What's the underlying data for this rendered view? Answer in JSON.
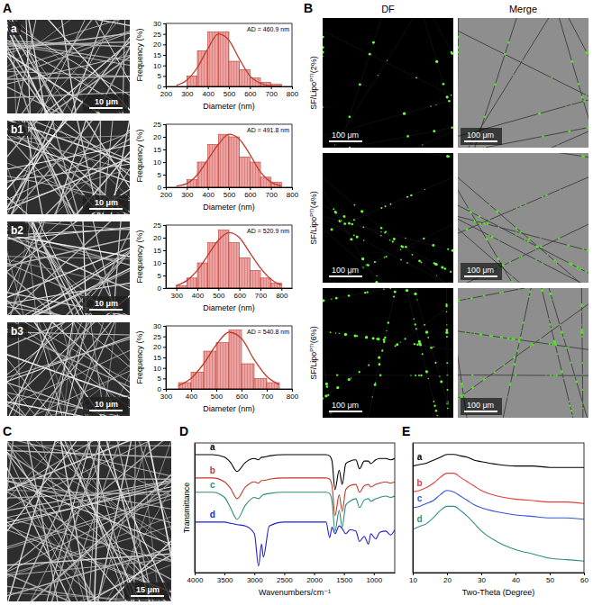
{
  "chart_data": [
    {
      "type": "histogram",
      "annotation": "AD = 460.9 nm",
      "xlabel": "Diameter (nm)",
      "ylabel": "Frequency (%)",
      "bins": [
        300,
        350,
        400,
        450,
        500,
        550,
        600,
        650,
        700,
        750
      ],
      "values": [
        5,
        17,
        26,
        26,
        12,
        8,
        4,
        2,
        1
      ],
      "color": "#eaa3a3",
      "xlim": [
        200,
        800
      ],
      "xticks": [
        200,
        300,
        400,
        500,
        600,
        700,
        800
      ],
      "ylim": [
        0,
        30
      ],
      "yticks": [
        0,
        5,
        10,
        15,
        20,
        25,
        30
      ],
      "fit": {
        "x": [
          250,
          300,
          350,
          400,
          450,
          500,
          550,
          600,
          650,
          700,
          750
        ],
        "values": [
          0.5,
          3,
          9,
          18,
          25,
          22,
          13,
          5,
          1.5,
          0.3,
          0.1
        ],
        "color": "#c0392b"
      }
    },
    {
      "type": "histogram",
      "annotation": "AD = 491.8 nm",
      "xlabel": "Diameter (nm)",
      "ylabel": "Frequency (%)",
      "bins": [
        300,
        350,
        400,
        450,
        500,
        550,
        600,
        650,
        700,
        750
      ],
      "values": [
        3,
        10,
        17,
        21,
        20,
        12,
        10,
        4,
        2
      ],
      "color": "#eaa3a3",
      "xlim": [
        200,
        800
      ],
      "xticks": [
        200,
        300,
        400,
        500,
        600,
        700,
        800
      ],
      "ylim": [
        0,
        25
      ],
      "yticks": [
        0,
        5,
        10,
        15,
        20,
        25
      ],
      "fit": {
        "x": [
          250,
          300,
          350,
          400,
          450,
          500,
          550,
          600,
          650,
          700,
          750
        ],
        "values": [
          0.5,
          1.5,
          5,
          11,
          17,
          21,
          19,
          13,
          6,
          2,
          0.6
        ],
        "color": "#c0392b"
      }
    },
    {
      "type": "histogram",
      "annotation": "AD = 520.9 nm",
      "xlabel": "Diameter (nm)",
      "ylabel": "Frequency (%)",
      "bins": [
        300,
        350,
        400,
        450,
        500,
        550,
        600,
        650,
        700,
        750,
        800
      ],
      "values": [
        1,
        4,
        10,
        18,
        23,
        18,
        12,
        7,
        4,
        2
      ],
      "color": "#eaa3a3",
      "xlim": [
        250,
        850
      ],
      "xticks": [
        300,
        400,
        500,
        600,
        700,
        800
      ],
      "ylim": [
        0,
        25
      ],
      "yticks": [
        0,
        5,
        10,
        15,
        20,
        25
      ],
      "fit": {
        "x": [
          300,
          350,
          400,
          450,
          500,
          550,
          600,
          650,
          700,
          750,
          800
        ],
        "values": [
          1,
          3,
          7,
          13,
          19,
          22,
          20,
          14,
          8,
          3.5,
          1.2
        ],
        "color": "#c0392b"
      }
    },
    {
      "type": "histogram",
      "annotation": "AD = 540.8 nm",
      "xlabel": "Diameter (nm)",
      "ylabel": "Frequency (%)",
      "bins": [
        350,
        400,
        450,
        500,
        550,
        600,
        650,
        700,
        750
      ],
      "values": [
        3,
        8,
        18,
        22,
        28,
        12,
        5,
        3
      ],
      "color": "#eaa3a3",
      "xlim": [
        300,
        800
      ],
      "xticks": [
        300,
        400,
        500,
        600,
        700,
        800
      ],
      "ylim": [
        0,
        30
      ],
      "yticks": [
        0,
        5,
        10,
        15,
        20,
        25,
        30
      ],
      "fit": {
        "x": [
          350,
          400,
          450,
          500,
          550,
          600,
          650,
          700,
          750
        ],
        "values": [
          1.5,
          5,
          12,
          21,
          27,
          24,
          14,
          6,
          2
        ],
        "color": "#c0392b"
      }
    },
    {
      "type": "line",
      "xlabel": "Wavenumbers/cm⁻¹",
      "ylabel": "Transmittance",
      "tick_labels": "x",
      "xlim": [
        4000,
        650
      ],
      "xticks": [
        4000,
        3500,
        3000,
        2500,
        2000,
        1500,
        1000
      ],
      "ylim": [
        0,
        100
      ],
      "x": [
        4000,
        3700,
        3500,
        3400,
        3290,
        3150,
        3000,
        2930,
        2880,
        2850,
        2750,
        2500,
        2000,
        1800,
        1740,
        1700,
        1650,
        1580,
        1530,
        1470,
        1400,
        1300,
        1240,
        1160,
        1090,
        1050,
        970,
        900,
        800,
        720,
        650
      ],
      "series": [
        {
          "name": "a",
          "color": "#000000",
          "values": [
            91,
            91,
            89,
            85,
            78,
            85,
            88,
            87,
            89,
            89,
            90,
            91,
            91,
            91,
            90,
            86,
            64,
            79,
            68,
            84,
            86,
            87,
            80,
            86,
            86,
            84,
            87,
            88,
            88,
            87,
            88
          ]
        },
        {
          "name": "b",
          "color": "#c0392b",
          "values": [
            73,
            73,
            70,
            65,
            57,
            66,
            70,
            69,
            71,
            71,
            72,
            73,
            73,
            73,
            72,
            67,
            44,
            60,
            47,
            64,
            67,
            68,
            62,
            67,
            68,
            66,
            68,
            69,
            70,
            69,
            70
          ]
        },
        {
          "name": "c",
          "color": "#2e8b7a",
          "values": [
            62,
            62,
            58,
            50,
            41,
            52,
            58,
            57,
            59,
            60,
            61,
            62,
            62,
            62,
            61,
            55,
            32,
            48,
            35,
            52,
            55,
            57,
            50,
            56,
            57,
            55,
            57,
            58,
            59,
            58,
            59
          ]
        },
        {
          "name": "d",
          "color": "#1f1fd0",
          "values": [
            39,
            39,
            39,
            38,
            37,
            36,
            30,
            5,
            22,
            12,
            36,
            39,
            39,
            39,
            27,
            35,
            30,
            36,
            34,
            30,
            33,
            32,
            24,
            28,
            22,
            30,
            26,
            31,
            32,
            29,
            33
          ]
        }
      ]
    },
    {
      "type": "line",
      "xlabel": "Two-Theta (Degree)",
      "tick_labels": "x",
      "xlim": [
        10,
        60
      ],
      "xticks": [
        10,
        20,
        30,
        40,
        50,
        60
      ],
      "ylim": [
        10,
        100
      ],
      "x": [
        10,
        12,
        14,
        16,
        18,
        20,
        22,
        24,
        26,
        28,
        30,
        35,
        40,
        45,
        50,
        55,
        60
      ],
      "series": [
        {
          "name": "a",
          "color": "#000000",
          "values": [
            84,
            85,
            86,
            88,
            90,
            92,
            92,
            91,
            90,
            88,
            87,
            85,
            84,
            84,
            83,
            83,
            83
          ]
        },
        {
          "name": "b",
          "color": "#e0403a",
          "values": [
            66,
            67,
            69,
            72,
            76,
            79,
            79,
            76,
            73,
            70,
            67,
            63,
            61,
            60,
            59,
            59,
            58
          ]
        },
        {
          "name": "c",
          "color": "#3355dd",
          "values": [
            55,
            56,
            58,
            60,
            64,
            67,
            66,
            63,
            60,
            57,
            55,
            52,
            50,
            49,
            48,
            48,
            47
          ]
        },
        {
          "name": "d",
          "color": "#2f8f80",
          "values": [
            40,
            42,
            44,
            48,
            53,
            56,
            56,
            53,
            49,
            44,
            39,
            31,
            26,
            23,
            20,
            19,
            18
          ]
        }
      ]
    }
  ],
  "figure": {
    "panel_letters": [
      "A",
      "B",
      "C",
      "D",
      "E"
    ],
    "sem_images": [
      {
        "label": "a",
        "scale_bar": "10 μm"
      },
      {
        "label": "b1",
        "scale_bar": "10 μm"
      },
      {
        "label": "b2",
        "scale_bar": "10 μm"
      },
      {
        "label": "b3",
        "scale_bar": "10 μm"
      },
      {
        "scale_bar": "15 μm"
      }
    ],
    "fluorescence": {
      "columns": [
        "DF",
        "Merge"
      ],
      "rows": [
        {
          "label": [
            "SF/Lipo",
            "PTI",
            "(2%)"
          ],
          "scale_bar": "100 μm"
        },
        {
          "label": [
            "SF/Lipo",
            "PTI",
            "(4%)"
          ],
          "scale_bar": "100 μm"
        },
        {
          "label": [
            "SF/Lipo",
            "PTI",
            "(6%)"
          ],
          "scale_bar": "100 μm"
        }
      ]
    }
  }
}
